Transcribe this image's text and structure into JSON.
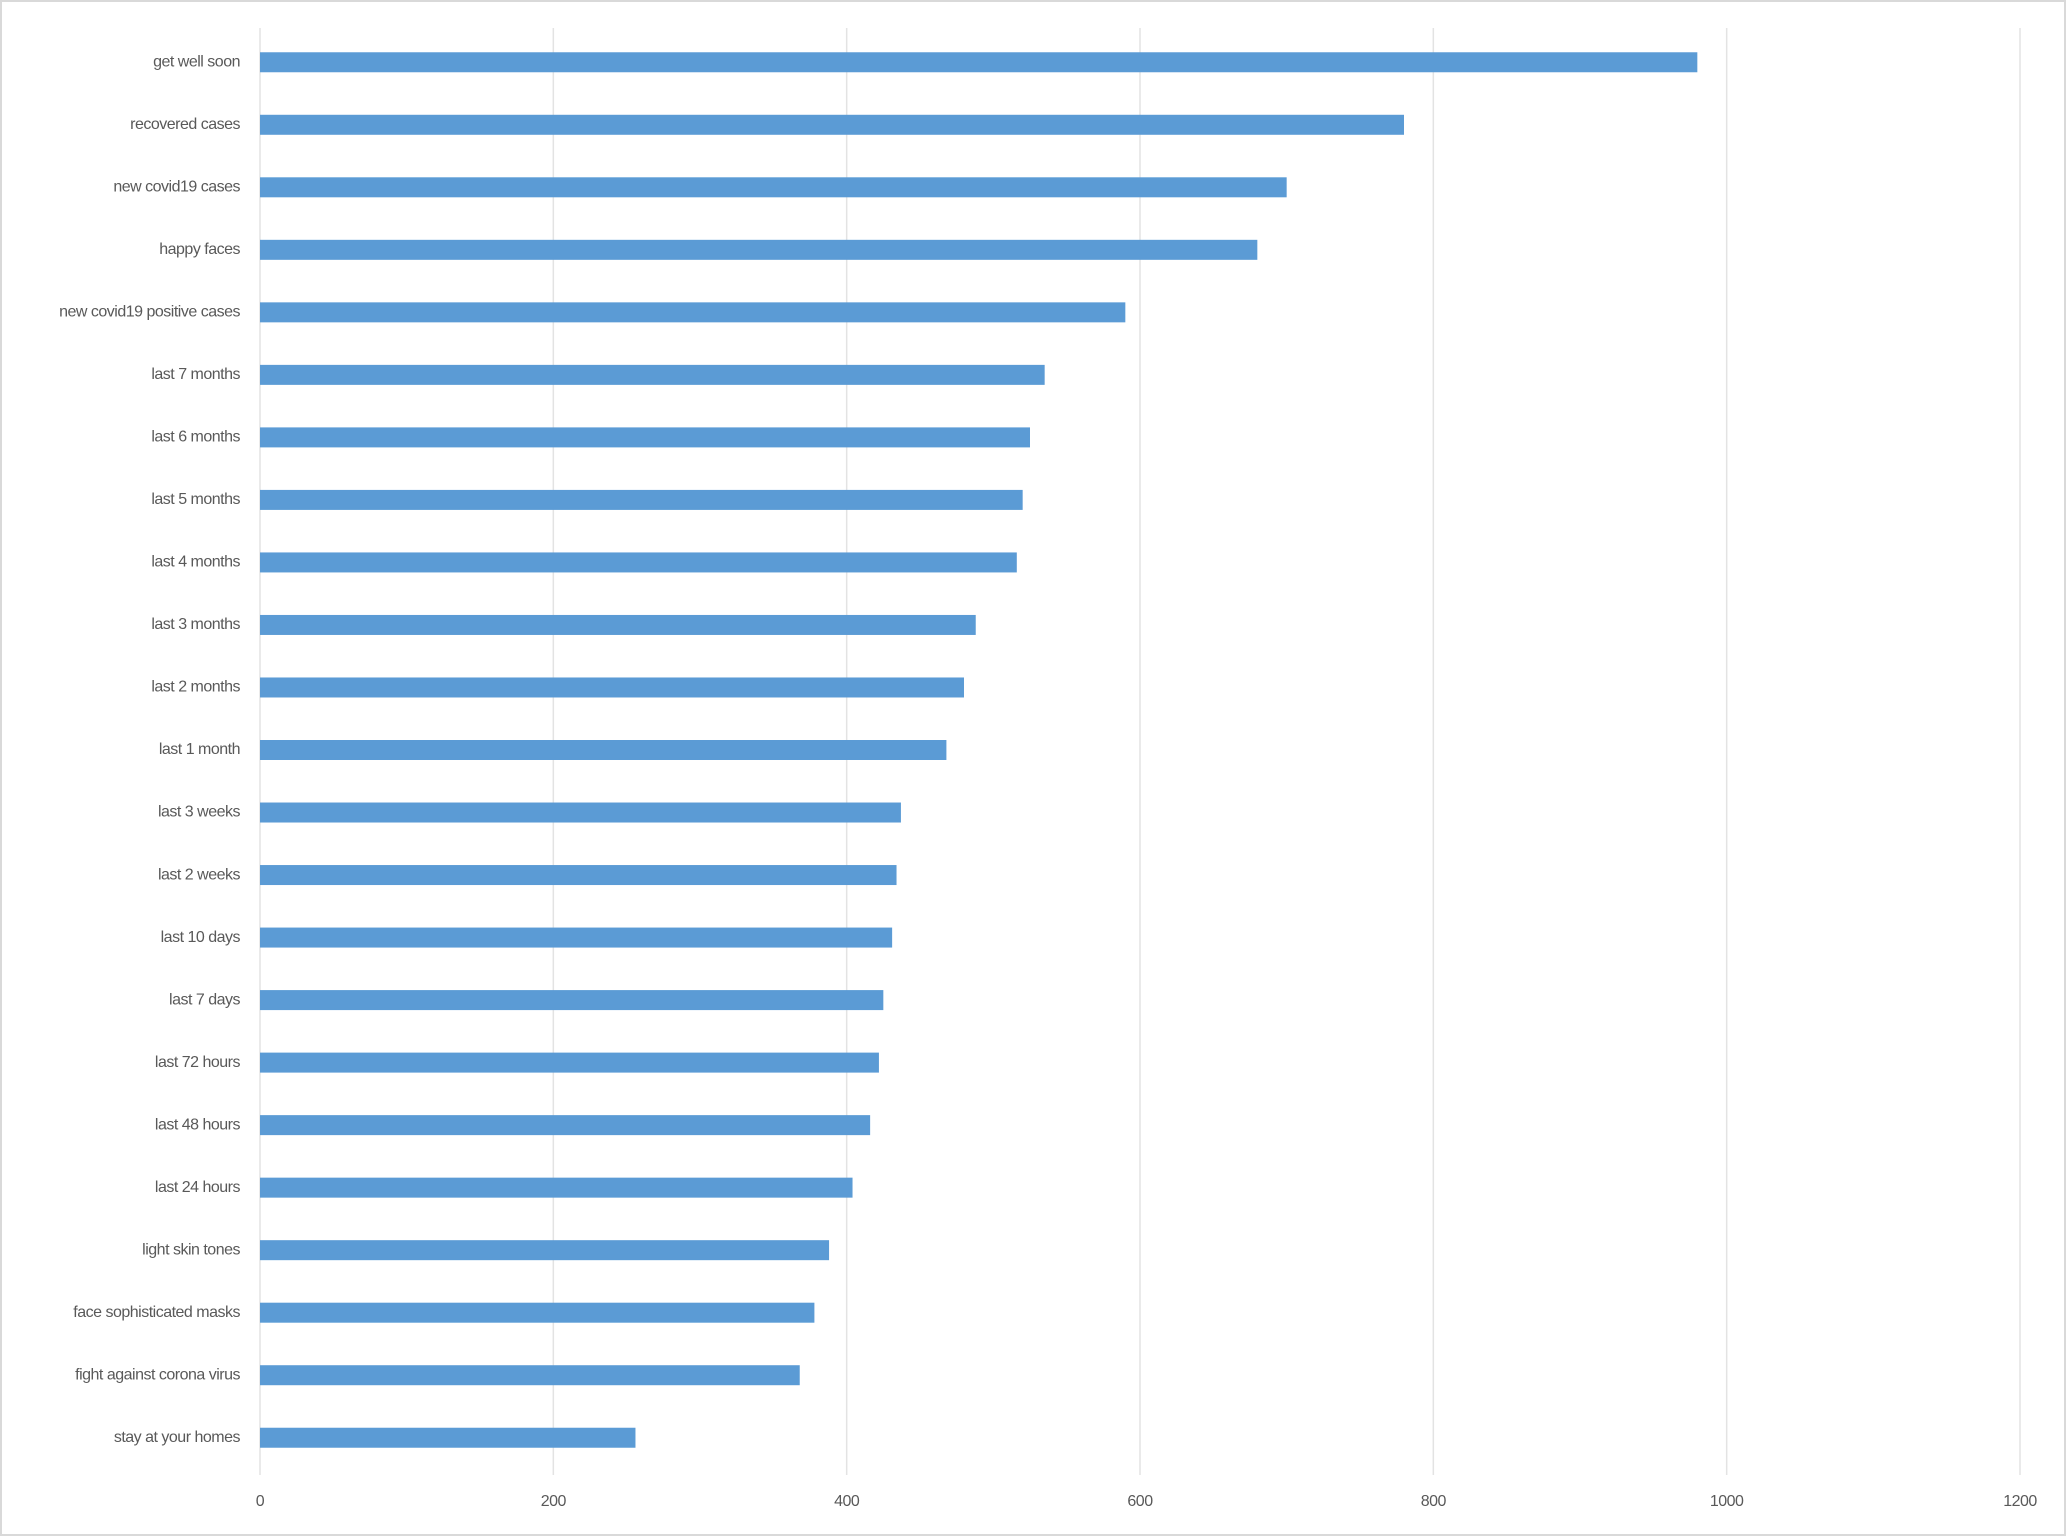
{
  "chart_data": {
    "type": "bar",
    "orientation": "horizontal",
    "categories": [
      "get well soon",
      "recovered cases",
      "new covid19 cases",
      "happy faces",
      "new covid19 positive cases",
      "last 7 months",
      "last 6 months",
      "last 5 months",
      "last 4 months",
      "last 3 months",
      "last 2 months",
      "last 1 month",
      "last 3 weeks",
      "last 2 weeks",
      "last 10 days",
      "last 7 days",
      "last 72 hours",
      "last 48 hours",
      "last 24 hours",
      "light skin tones",
      "face sophisticated masks",
      "fight against corona virus",
      "stay at your homes"
    ],
    "values": [
      980,
      780,
      700,
      680,
      590,
      535,
      525,
      520,
      516,
      488,
      480,
      468,
      437,
      434,
      431,
      425,
      422,
      416,
      404,
      388,
      378,
      368,
      256
    ],
    "color": "#5b9bd5",
    "xlim": [
      0,
      1200
    ],
    "xticks": [
      0,
      200,
      400,
      600,
      800,
      1000,
      1200
    ],
    "grid": true
  }
}
